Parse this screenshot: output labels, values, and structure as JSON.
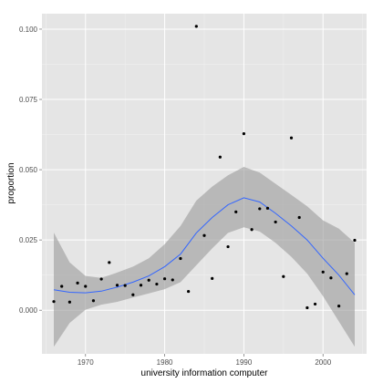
{
  "chart_data": {
    "type": "scatter",
    "xlabel": "university information computer",
    "ylabel": "proportion",
    "xlim": [
      1964.5,
      2005.5
    ],
    "ylim": [
      -0.0155,
      0.1055
    ],
    "x_ticks": [
      1970,
      1980,
      1990,
      2000
    ],
    "x_tick_labels": [
      "1970",
      "1980",
      "1990",
      "2000"
    ],
    "x_minor_ticks": [
      1965,
      1975,
      1985,
      1995,
      2005
    ],
    "y_ticks": [
      0.0,
      0.025,
      0.05,
      0.075,
      0.1
    ],
    "y_tick_labels": [
      "0.000",
      "0.025",
      "0.050",
      "0.075",
      "0.100"
    ],
    "y_minor_ticks": [
      0.0125,
      0.0375,
      0.0625,
      0.0875
    ],
    "grid": true,
    "legend": "none",
    "colors": {
      "panel": "#e5e5e5",
      "grid_major": "#ffffff",
      "grid_minor": "#f2f2f2",
      "points": "#000000",
      "smooth_line": "#3366ff",
      "ribbon": "#999999"
    },
    "points": [
      {
        "x": 1966,
        "y": 0.0031
      },
      {
        "x": 1967,
        "y": 0.0085
      },
      {
        "x": 1968,
        "y": 0.0029
      },
      {
        "x": 1969,
        "y": 0.0097
      },
      {
        "x": 1970,
        "y": 0.0085
      },
      {
        "x": 1971,
        "y": 0.0034
      },
      {
        "x": 1972,
        "y": 0.0111
      },
      {
        "x": 1973,
        "y": 0.017
      },
      {
        "x": 1974,
        "y": 0.0089
      },
      {
        "x": 1975,
        "y": 0.0088
      },
      {
        "x": 1976,
        "y": 0.0055
      },
      {
        "x": 1977,
        "y": 0.0089
      },
      {
        "x": 1978,
        "y": 0.0107
      },
      {
        "x": 1979,
        "y": 0.0093
      },
      {
        "x": 1980,
        "y": 0.0112
      },
      {
        "x": 1981,
        "y": 0.0108
      },
      {
        "x": 1982,
        "y": 0.0184
      },
      {
        "x": 1983,
        "y": 0.0067
      },
      {
        "x": 1984,
        "y": 0.101
      },
      {
        "x": 1985,
        "y": 0.0266
      },
      {
        "x": 1986,
        "y": 0.0113
      },
      {
        "x": 1987,
        "y": 0.0545
      },
      {
        "x": 1988,
        "y": 0.0226
      },
      {
        "x": 1989,
        "y": 0.035
      },
      {
        "x": 1990,
        "y": 0.0628
      },
      {
        "x": 1991,
        "y": 0.0287
      },
      {
        "x": 1992,
        "y": 0.0361
      },
      {
        "x": 1993,
        "y": 0.0363
      },
      {
        "x": 1994,
        "y": 0.0314
      },
      {
        "x": 1995,
        "y": 0.012
      },
      {
        "x": 1996,
        "y": 0.0613
      },
      {
        "x": 1997,
        "y": 0.033
      },
      {
        "x": 1998,
        "y": 0.0009
      },
      {
        "x": 1999,
        "y": 0.0022
      },
      {
        "x": 2000,
        "y": 0.0136
      },
      {
        "x": 2001,
        "y": 0.0115
      },
      {
        "x": 2002,
        "y": 0.0015
      },
      {
        "x": 2003,
        "y": 0.013
      },
      {
        "x": 2004,
        "y": 0.0249
      }
    ],
    "smooth": {
      "x": [
        1966,
        1968,
        1970,
        1972,
        1974,
        1976,
        1978,
        1980,
        1982,
        1984,
        1986,
        1988,
        1990,
        1992,
        1994,
        1996,
        1998,
        2000,
        2002,
        2004
      ],
      "y": [
        0.0073,
        0.0064,
        0.0062,
        0.0068,
        0.0082,
        0.01,
        0.0122,
        0.0155,
        0.02,
        0.0275,
        0.033,
        0.0375,
        0.04,
        0.0385,
        0.0345,
        0.03,
        0.025,
        0.0185,
        0.0125,
        0.0055
      ],
      "lower": [
        -0.013,
        -0.0045,
        0.0002,
        0.002,
        0.003,
        0.0045,
        0.006,
        0.0075,
        0.01,
        0.016,
        0.022,
        0.0275,
        0.0295,
        0.028,
        0.024,
        0.019,
        0.013,
        0.005,
        -0.004,
        -0.013
      ],
      "upper": [
        0.0276,
        0.017,
        0.0122,
        0.0115,
        0.0134,
        0.0155,
        0.0185,
        0.0235,
        0.03,
        0.039,
        0.044,
        0.048,
        0.051,
        0.049,
        0.045,
        0.041,
        0.037,
        0.032,
        0.029,
        0.024
      ]
    }
  }
}
